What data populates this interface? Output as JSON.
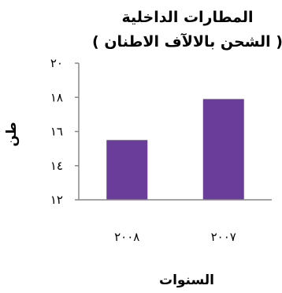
{
  "chart_data": {
    "type": "bar",
    "title": "المطارات الداخلية",
    "subtitle": "( الشحن بالالآف الاطنان )",
    "xlabel": "السنوات",
    "ylabel": "طن",
    "categories": [
      "٢٠٠٨",
      "٢٠٠٧"
    ],
    "values": [
      15.5,
      17.9
    ],
    "ylim": [
      12,
      20
    ],
    "yticks": [
      12,
      14,
      16,
      18,
      20
    ],
    "ytick_labels": [
      "١٢",
      "١٤",
      "١٦",
      "١٨",
      "٢٠"
    ],
    "bar_color": "#6A3D9A",
    "axis_color": "#888888",
    "grid": false,
    "legend": "none"
  }
}
